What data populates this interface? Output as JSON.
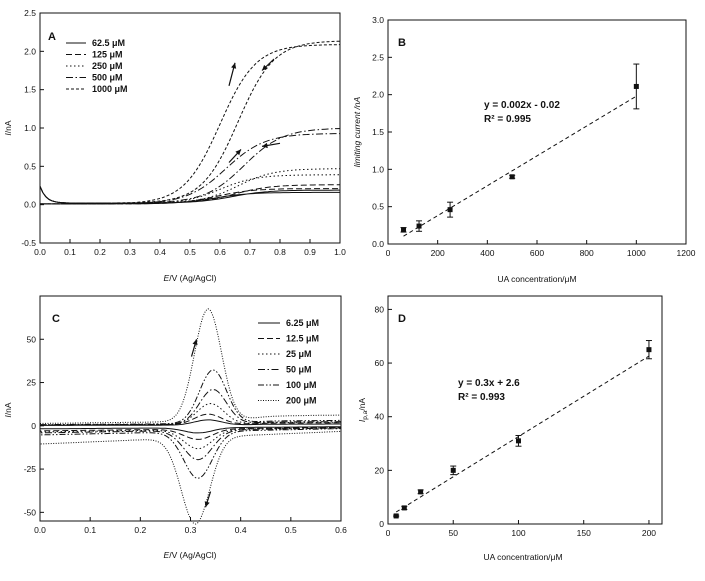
{
  "chart_data": [
    {
      "panel": "A",
      "type": "line",
      "xlabel_italic": "E",
      "xlabel_rest": "/V (Ag/AgCl)",
      "ylabel_italic": "I",
      "ylabel_rest": "/nA",
      "xlim": [
        0.0,
        1.0
      ],
      "ylim": [
        -0.5,
        2.5
      ],
      "xticks": [
        "0.0",
        "0.1",
        "0.2",
        "0.3",
        "0.4",
        "0.5",
        "0.6",
        "0.7",
        "0.8",
        "0.9",
        "1.0"
      ],
      "xtick_values": [
        0,
        0.1,
        0.2,
        0.3,
        0.4,
        0.5,
        0.6,
        0.7,
        0.8,
        0.9,
        1.0
      ],
      "yticks": [
        "-0.5",
        "0.0",
        "0.5",
        "1.0",
        "1.5",
        "2.0",
        "2.5"
      ],
      "ytick_values": [
        -0.5,
        0,
        0.5,
        1.0,
        1.5,
        2.0,
        2.5
      ],
      "series": [
        {
          "name": "62.5 μM",
          "dash": "solid",
          "plateau_fwd": 0.17,
          "plateau_rev": 0.15,
          "half": 0.62,
          "width": 0.06
        },
        {
          "name": "125 μM",
          "dash": "dash",
          "plateau_fwd": 0.24,
          "plateau_rev": 0.2,
          "half": 0.63,
          "width": 0.06
        },
        {
          "name": "250 μM",
          "dash": "dot",
          "plateau_fwd": 0.45,
          "plateau_rev": 0.38,
          "half": 0.64,
          "width": 0.06
        },
        {
          "name": "500 μM",
          "dash": "dashdot",
          "plateau_fwd": 0.98,
          "plateau_rev": 0.92,
          "half": 0.66,
          "width": 0.065
        },
        {
          "name": "1000 μM",
          "dash": "shortdash",
          "plateau_fwd": 2.12,
          "plateau_rev": 2.08,
          "half": 0.64,
          "width": 0.06
        }
      ]
    },
    {
      "panel": "B",
      "type": "scatter",
      "xlabel": "UA concentration/μM",
      "ylabel": "limiting current /nA",
      "xlim": [
        0,
        1200
      ],
      "ylim": [
        0.0,
        3.0
      ],
      "xticks": [
        "0",
        "200",
        "400",
        "600",
        "800",
        "1000",
        "1200"
      ],
      "xtick_values": [
        0,
        200,
        400,
        600,
        800,
        1000,
        1200
      ],
      "yticks": [
        "0.0",
        "0.5",
        "1.0",
        "1.5",
        "2.0",
        "2.5",
        "3.0"
      ],
      "ytick_values": [
        0,
        0.5,
        1.0,
        1.5,
        2.0,
        2.5,
        3.0
      ],
      "x": [
        62.5,
        125,
        250,
        500,
        1000
      ],
      "y": [
        0.19,
        0.24,
        0.46,
        0.9,
        2.11
      ],
      "err": [
        0.03,
        0.07,
        0.1,
        0.02,
        0.3
      ],
      "fit": {
        "slope": 0.002,
        "intercept": -0.02,
        "x_range": [
          62.5,
          1000
        ]
      },
      "equation": "y = 0.002x - 0.02",
      "r2": "R² = 0.995"
    },
    {
      "panel": "C",
      "type": "line",
      "xlabel_italic": "E",
      "xlabel_rest": "/V (Ag/AgCl)",
      "ylabel_italic": "I",
      "ylabel_rest": "/nA",
      "xlim": [
        0.0,
        0.6
      ],
      "ylim": [
        -55,
        75
      ],
      "xticks": [
        "0.0",
        "0.1",
        "0.2",
        "0.3",
        "0.4",
        "0.5",
        "0.6"
      ],
      "xtick_values": [
        0,
        0.1,
        0.2,
        0.3,
        0.4,
        0.5,
        0.6
      ],
      "yticks": [
        "-50",
        "-25",
        "0",
        "25",
        "50"
      ],
      "ytick_values": [
        -50,
        -25,
        0,
        25,
        50
      ],
      "series": [
        {
          "name": "6.25 μM",
          "dash": "solid",
          "ipa": 3,
          "ipc": -3,
          "epa": 0.335,
          "epc": 0.315,
          "bg": 1.5
        },
        {
          "name": "12.5 μM",
          "dash": "dash",
          "ipa": 6,
          "ipc": -6,
          "epa": 0.335,
          "epc": 0.315,
          "bg": 2.5
        },
        {
          "name": "25 μM",
          "dash": "dot",
          "ipa": 12,
          "ipc": -11,
          "epa": 0.34,
          "epc": 0.315,
          "bg": 3
        },
        {
          "name": "50 μM",
          "dash": "dashdot",
          "ipa": 20,
          "ipc": -17,
          "epa": 0.345,
          "epc": 0.315,
          "bg": 3.5
        },
        {
          "name": "100 μM",
          "dash": "dashdotdot",
          "ipa": 31,
          "ipc": -27,
          "epa": 0.345,
          "epc": 0.315,
          "bg": 4.5
        },
        {
          "name": "200 μM",
          "dash": "fine",
          "ipa": 65,
          "ipc": -50,
          "epa": 0.335,
          "epc": 0.31,
          "bg": 9
        }
      ]
    },
    {
      "panel": "D",
      "type": "scatter",
      "xlabel": "UA concentration/μM",
      "ylabel_main": "I",
      "ylabel_sub": "p,a",
      "ylabel_rest": "/nA",
      "xlim": [
        0,
        210
      ],
      "ylim": [
        0,
        85
      ],
      "xticks": [
        "0",
        "50",
        "100",
        "150",
        "200"
      ],
      "xtick_values": [
        0,
        50,
        100,
        150,
        200
      ],
      "yticks": [
        "0",
        "20",
        "40",
        "60",
        "80"
      ],
      "ytick_values": [
        0,
        20,
        40,
        60,
        80
      ],
      "x": [
        6.25,
        12.5,
        25,
        50,
        100,
        200
      ],
      "y": [
        3,
        6,
        12,
        20,
        31,
        65
      ],
      "err": [
        0.3,
        0.6,
        0.7,
        1.6,
        2.0,
        3.4
      ],
      "fit": {
        "slope": 0.3,
        "intercept": 2.6,
        "x_range": [
          6.25,
          200
        ]
      },
      "equation": "y = 0.3x + 2.6",
      "r2": "R² = 0.993"
    }
  ]
}
